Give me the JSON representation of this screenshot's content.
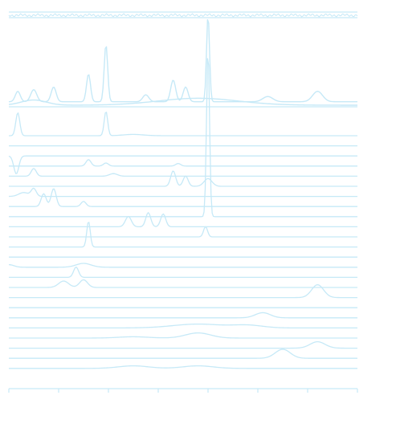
{
  "chart_data": {
    "type": "line",
    "title": "",
    "xlabel": "",
    "ylabel": "",
    "xlim": [
      0,
      7
    ],
    "x_ticks": [
      0,
      1,
      2,
      3,
      4,
      5,
      6,
      7
    ],
    "x_tick_labels": [],
    "grid": false,
    "legend": "none",
    "line_color": "#c6e9f7",
    "top_panel": {
      "series": [
        {
          "peaks": [
            [
              0.18,
              0.12,
              0.05
            ],
            [
              0.5,
              0.14,
              0.06
            ],
            [
              0.9,
              0.17,
              0.05
            ],
            [
              1.6,
              0.32,
              0.04
            ],
            [
              1.95,
              0.66,
              0.035
            ],
            [
              2.75,
              0.08,
              0.06
            ],
            [
              3.3,
              0.25,
              0.05
            ],
            [
              3.55,
              0.17,
              0.05
            ],
            [
              4.0,
              1.0,
              0.03
            ],
            [
              5.2,
              0.06,
              0.1
            ],
            [
              6.2,
              0.12,
              0.1
            ]
          ],
          "baseline": 0.04
        },
        {
          "peaks": [
            [
              0.5,
              0.06,
              0.25
            ],
            [
              3.8,
              0.08,
              0.8
            ]
          ],
          "baseline": 0.0
        }
      ]
    },
    "traces": [
      {
        "baseline": 0.0,
        "peaks": [
          [
            0.18,
            0.9,
            0.04
          ],
          [
            1.95,
            0.95,
            0.035
          ],
          [
            2.5,
            0.05,
            0.2
          ]
        ]
      },
      {
        "baseline": 0.0,
        "peaks": []
      },
      {
        "baseline": 0.0,
        "peaks": [
          [
            0.15,
            -0.7,
            0.05
          ]
        ]
      },
      {
        "baseline": 0.0,
        "peaks": [
          [
            1.6,
            0.25,
            0.05
          ],
          [
            1.95,
            0.12,
            0.05
          ],
          [
            3.4,
            0.1,
            0.05
          ]
        ]
      },
      {
        "baseline": 0.0,
        "peaks": [
          [
            0.5,
            0.3,
            0.05
          ],
          [
            2.1,
            0.1,
            0.08
          ]
        ]
      },
      {
        "baseline": 0.0,
        "peaks": [
          [
            3.3,
            0.6,
            0.05
          ],
          [
            3.55,
            0.4,
            0.05
          ],
          [
            4.0,
            0.3,
            0.08
          ]
        ]
      },
      {
        "baseline": 0.0,
        "peaks": [
          [
            0.5,
            0.3,
            0.05
          ],
          [
            0.3,
            0.15,
            0.1
          ]
        ]
      },
      {
        "baseline": 0.0,
        "peaks": [
          [
            0.7,
            0.5,
            0.05
          ],
          [
            0.9,
            0.7,
            0.05
          ],
          [
            1.5,
            0.2,
            0.05
          ]
        ]
      },
      {
        "baseline": 0.0,
        "peaks": [
          [
            4.0,
            6.5,
            0.03
          ]
        ]
      },
      {
        "baseline": 0.0,
        "peaks": [
          [
            2.4,
            0.4,
            0.06
          ],
          [
            2.8,
            0.55,
            0.05
          ],
          [
            3.1,
            0.5,
            0.05
          ]
        ]
      },
      {
        "baseline": 0.0,
        "peaks": [
          [
            3.95,
            0.4,
            0.04
          ]
        ]
      },
      {
        "baseline": 0.0,
        "peaks": [
          [
            1.6,
            1.0,
            0.035
          ]
        ]
      },
      {
        "baseline": 0.0,
        "peaks": []
      },
      {
        "baseline": 0.0,
        "peaks": [
          [
            0.0,
            0.1,
            0.1
          ],
          [
            1.5,
            0.15,
            0.15
          ]
        ]
      },
      {
        "baseline": 0.0,
        "peaks": [
          [
            1.35,
            0.4,
            0.05
          ]
        ]
      },
      {
        "baseline": 0.0,
        "peaks": [
          [
            1.1,
            0.25,
            0.1
          ],
          [
            1.5,
            0.3,
            0.08
          ]
        ]
      },
      {
        "baseline": 0.0,
        "peaks": [
          [
            6.2,
            0.5,
            0.12
          ]
        ]
      },
      {
        "baseline": 0.0,
        "peaks": []
      },
      {
        "baseline": 0.0,
        "peaks": [
          [
            5.1,
            0.2,
            0.15
          ]
        ]
      },
      {
        "baseline": 0.0,
        "peaks": [
          [
            3.8,
            0.15,
            0.5
          ],
          [
            4.8,
            0.1,
            0.3
          ]
        ]
      },
      {
        "baseline": 0.0,
        "peaks": [
          [
            3.8,
            0.2,
            0.25
          ],
          [
            2.5,
            0.05,
            0.3
          ]
        ]
      },
      {
        "baseline": 0.0,
        "peaks": [
          [
            6.2,
            0.25,
            0.15
          ]
        ]
      },
      {
        "baseline": 0.0,
        "peaks": [
          [
            5.5,
            0.35,
            0.15
          ]
        ]
      },
      {
        "baseline": 0.0,
        "peaks": [
          [
            2.5,
            0.1,
            0.3
          ],
          [
            3.8,
            0.1,
            0.3
          ]
        ]
      }
    ]
  }
}
